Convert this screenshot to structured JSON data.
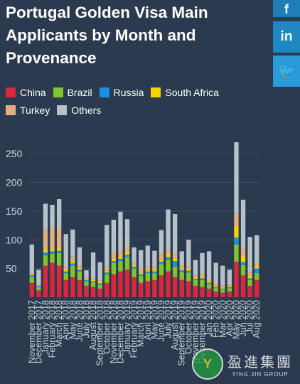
{
  "title": "Portugal Golden Visa Main Applicants by Month and Provenance",
  "social": {
    "facebook": "f",
    "linkedin": "in",
    "twitter": "🐦"
  },
  "watermark": {
    "logo": "Y",
    "cn": "盈進集團",
    "en": "YING JIN GROUP"
  },
  "colors": {
    "China": "#d9283d",
    "Brazil": "#7ec72a",
    "Russia": "#1a8fe6",
    "South Africa": "#f5d400",
    "Turkey": "#e0b07f",
    "Others": "#b7c1c9"
  },
  "chart_data": {
    "type": "bar",
    "stacked": true,
    "title": "Portugal Golden Visa Main Applicants by Month and Provenance",
    "xlabel": "",
    "ylabel": "",
    "ylim": [
      0,
      280
    ],
    "yticks": [
      50,
      100,
      150,
      200,
      250
    ],
    "grid": true,
    "legend_position": "top-left",
    "categories": [
      "November 2017",
      "December 2017",
      "January 2018",
      "February 2018",
      "March 2018",
      "April 2018",
      "May 2018",
      "June 2018",
      "July 2018",
      "August 2018",
      "September 2018",
      "October 2018",
      "November 2018",
      "December 2018",
      "January 2019",
      "February 2019",
      "March 2019",
      "April 2019",
      "May 2019",
      "June 2019",
      "July 2019",
      "August 2019",
      "September 2019",
      "October 2019",
      "November 2019",
      "December 2019",
      "January 2020",
      "February 2020",
      "March 2020",
      "April 2020",
      "May 2020",
      "June 2020",
      "July 2020",
      "August 2020"
    ],
    "tick_labels": [
      "November 2017",
      "December 2017",
      "January 2018",
      "February 2018",
      "March 2018",
      "April 2018",
      "May 2018",
      "June 2018",
      "July 2018",
      "August 2018",
      "September 2018",
      "October 2018",
      "November 2018",
      "December 2018",
      "January 2019",
      "February 2019",
      "March 2019",
      "April 2019",
      "May 2019",
      "June 2019",
      "July 2019",
      "August 2019",
      "September 2019",
      "October 2019",
      "November 2019",
      "December 2019",
      "Jan 2020",
      "Feb 2020",
      "Mar 2020",
      "Apr 2020",
      "May 2020",
      "Jun 2020",
      "Jul 2020",
      "Aug 2020"
    ],
    "series": [
      {
        "name": "China",
        "values": [
          25,
          12,
          55,
          60,
          55,
          30,
          35,
          30,
          20,
          18,
          15,
          25,
          40,
          45,
          48,
          35,
          25,
          28,
          30,
          38,
          45,
          35,
          30,
          28,
          20,
          18,
          15,
          10,
          8,
          10,
          62,
          38,
          20,
          30
        ]
      },
      {
        "name": "Brazil",
        "values": [
          10,
          6,
          18,
          16,
          22,
          12,
          20,
          15,
          8,
          8,
          7,
          15,
          20,
          18,
          22,
          15,
          12,
          14,
          12,
          20,
          20,
          18,
          14,
          15,
          10,
          12,
          8,
          6,
          5,
          6,
          30,
          18,
          10,
          12
        ]
      },
      {
        "name": "Russia",
        "values": [
          3,
          2,
          5,
          4,
          4,
          3,
          4,
          3,
          2,
          2,
          2,
          3,
          3,
          4,
          4,
          3,
          3,
          3,
          3,
          4,
          5,
          10,
          3,
          3,
          2,
          3,
          2,
          2,
          2,
          2,
          12,
          5,
          3,
          8
        ]
      },
      {
        "name": "South Africa",
        "values": [
          2,
          2,
          5,
          4,
          5,
          3,
          4,
          3,
          2,
          2,
          2,
          3,
          4,
          3,
          4,
          3,
          3,
          3,
          3,
          4,
          5,
          5,
          3,
          3,
          2,
          3,
          2,
          2,
          2,
          2,
          20,
          12,
          5,
          5
        ]
      },
      {
        "name": "Turkey",
        "values": [
          2,
          1,
          35,
          35,
          35,
          5,
          8,
          6,
          3,
          3,
          3,
          8,
          12,
          10,
          10,
          5,
          8,
          6,
          6,
          10,
          8,
          8,
          5,
          5,
          4,
          5,
          4,
          3,
          3,
          2,
          22,
          12,
          5,
          5
        ]
      },
      {
        "name": "Others",
        "values": [
          50,
          25,
          45,
          42,
          50,
          57,
          47,
          30,
          12,
          45,
          32,
          72,
          56,
          69,
          48,
          26,
          31,
          36,
          27,
          41,
          70,
          69,
          25,
          46,
          27,
          36,
          49,
          37,
          35,
          26,
          124,
          85,
          62,
          48
        ]
      }
    ]
  }
}
